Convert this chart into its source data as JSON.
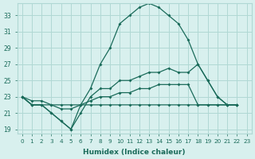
{
  "xlabel": "Humidex (Indice chaleur)",
  "ylabel": "",
  "bg_color": "#d8f0ee",
  "grid_color": "#b0d8d4",
  "line_color": "#1a6b5a",
  "xlim": [
    -0.5,
    23.5
  ],
  "ylim": [
    18.5,
    34.5
  ],
  "xticks": [
    0,
    1,
    2,
    3,
    4,
    5,
    6,
    7,
    8,
    9,
    10,
    11,
    12,
    13,
    14,
    15,
    16,
    17,
    18,
    19,
    20,
    21,
    22,
    23
  ],
  "yticks": [
    19,
    21,
    23,
    25,
    27,
    29,
    31,
    33
  ],
  "series": [
    {
      "x": [
        0,
        1,
        2,
        3,
        4,
        5,
        6,
        7,
        8,
        9,
        10,
        11,
        12,
        13,
        14,
        15,
        16,
        17,
        18,
        19,
        20,
        21,
        22
      ],
      "y": [
        23,
        22,
        22,
        21,
        20,
        19,
        22,
        24,
        27,
        29,
        32,
        33,
        34,
        34.5,
        34,
        33,
        32,
        30,
        27,
        25,
        23,
        22,
        22
      ]
    },
    {
      "x": [
        0,
        1,
        2,
        3,
        4,
        5,
        6,
        7,
        8,
        9,
        10,
        11,
        12,
        13,
        14,
        15,
        16,
        17,
        18,
        19,
        20,
        21,
        22
      ],
      "y": [
        23,
        22,
        22,
        21,
        20,
        19,
        21,
        23,
        24,
        24,
        25,
        25,
        25.5,
        26,
        26,
        26.5,
        26,
        26,
        27,
        25,
        23,
        22,
        22
      ]
    },
    {
      "x": [
        0,
        1,
        2,
        3,
        4,
        5,
        6,
        7,
        8,
        9,
        10,
        11,
        12,
        13,
        14,
        15,
        16,
        17,
        18,
        19,
        20,
        21,
        22
      ],
      "y": [
        23,
        22.5,
        22.5,
        22,
        21.5,
        21.5,
        22,
        22.5,
        23,
        23,
        23.5,
        23.5,
        24,
        24,
        24.5,
        24.5,
        24.5,
        24.5,
        22,
        22,
        22,
        22,
        22
      ]
    },
    {
      "x": [
        0,
        1,
        2,
        3,
        4,
        5,
        6,
        7,
        8,
        9,
        10,
        11,
        12,
        13,
        14,
        15,
        16,
        17,
        18,
        19,
        20,
        21,
        22
      ],
      "y": [
        23,
        22,
        22,
        22,
        22,
        22,
        22,
        22,
        22,
        22,
        22,
        22,
        22,
        22,
        22,
        22,
        22,
        22,
        22,
        22,
        22,
        22,
        22
      ]
    }
  ]
}
